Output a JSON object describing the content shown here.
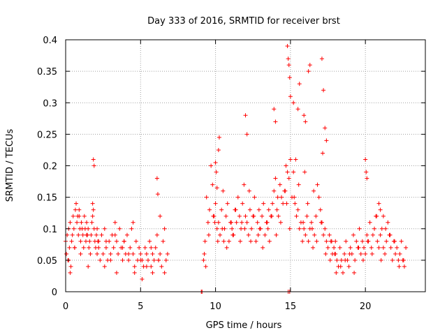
{
  "chart_data": {
    "type": "scatter",
    "title": "Day 333 of 2016, SRMTID for receiver brst",
    "xlabel": "GPS time / hours",
    "ylabel": "SRMTID / TECUs",
    "xlim": [
      0,
      24
    ],
    "ylim": [
      0,
      0.4
    ],
    "xticks": [
      0,
      5,
      10,
      15,
      20
    ],
    "xtick_labels": [
      "0",
      "5",
      "10",
      "15",
      "20"
    ],
    "yticks": [
      0,
      0.05,
      0.1,
      0.15,
      0.2,
      0.25,
      0.3,
      0.35,
      0.4
    ],
    "ytick_labels": [
      "0",
      "0.05",
      "0.1",
      "0.15",
      "0.2",
      "0.25",
      "0.3",
      "0.35",
      "0.4"
    ],
    "grid": true,
    "marker": "plus",
    "colors": {
      "marker": "#ff0000",
      "grid": "#a0a0a0",
      "axis": "#000000"
    },
    "series": [
      {
        "name": "SRMTID",
        "x": [
          0.0,
          0.05,
          0.1,
          0.15,
          0.2,
          0.25,
          0.3,
          0.35,
          0.4,
          0.45,
          0.5,
          0.55,
          0.6,
          0.65,
          0.7,
          0.75,
          0.8,
          0.85,
          0.9,
          0.95,
          1.0,
          1.05,
          1.1,
          1.15,
          1.2,
          1.25,
          1.3,
          1.35,
          1.4,
          1.45,
          1.5,
          1.55,
          1.6,
          1.65,
          1.7,
          1.75,
          1.8,
          1.85,
          1.9,
          1.95,
          2.0,
          2.05,
          2.1,
          2.15,
          2.2,
          2.3,
          2.4,
          2.5,
          2.6,
          2.7,
          2.8,
          2.9,
          3.0,
          3.1,
          3.2,
          3.3,
          3.4,
          3.5,
          3.6,
          3.7,
          3.8,
          3.9,
          4.0,
          4.1,
          4.2,
          4.3,
          4.4,
          4.5,
          4.6,
          4.7,
          4.8,
          4.9,
          5.0,
          5.1,
          5.2,
          5.3,
          5.4,
          5.5,
          5.6,
          5.7,
          5.8,
          5.9,
          6.0,
          6.1,
          6.2,
          6.3,
          6.4,
          6.5,
          6.6,
          6.7,
          6.8,
          0.2,
          0.6,
          1.0,
          1.4,
          1.8,
          2.2,
          2.6,
          3.0,
          3.4,
          3.8,
          4.2,
          4.6,
          5.0,
          5.4,
          5.8,
          6.2,
          6.6,
          0.3,
          0.9,
          1.5,
          2.1,
          2.7,
          3.3,
          3.9,
          4.5,
          5.1,
          5.7,
          6.3,
          1.85,
          1.9,
          6.1,
          6.15,
          9.05,
          9.1,
          9.2,
          9.3,
          9.4,
          9.5,
          9.6,
          9.7,
          9.8,
          9.9,
          10.0,
          10.1,
          10.2,
          10.3,
          10.4,
          10.5,
          10.6,
          10.7,
          10.8,
          10.9,
          11.0,
          11.1,
          11.2,
          11.3,
          11.4,
          11.5,
          11.6,
          11.7,
          11.8,
          11.9,
          12.0,
          12.1,
          12.2,
          12.3,
          12.4,
          12.5,
          12.6,
          12.7,
          12.8,
          12.9,
          13.0,
          13.1,
          13.2,
          13.3,
          13.4,
          13.5,
          13.6,
          13.7,
          13.8,
          13.9,
          14.0,
          14.1,
          14.2,
          14.3,
          14.4,
          14.5,
          14.6,
          14.7,
          14.8,
          14.9,
          15.0,
          15.1,
          15.2,
          15.3,
          15.4,
          15.5,
          15.6,
          15.7,
          15.8,
          15.9,
          16.0,
          16.1,
          16.2,
          16.3,
          16.4,
          16.5,
          16.6,
          16.7,
          16.8,
          16.9,
          17.0,
          17.1,
          17.2,
          17.3,
          17.4,
          17.5,
          17.6,
          17.7,
          17.8,
          17.9,
          18.0,
          9.25,
          9.55,
          9.85,
          10.15,
          10.45,
          10.75,
          11.05,
          11.35,
          11.65,
          11.95,
          12.25,
          12.55,
          12.85,
          13.15,
          13.45,
          13.75,
          14.05,
          14.35,
          14.65,
          14.95,
          15.25,
          15.55,
          15.85,
          16.15,
          16.45,
          16.75,
          17.05,
          17.35,
          17.65,
          17.95,
          9.35,
          9.95,
          10.55,
          11.15,
          11.75,
          12.35,
          12.95,
          13.55,
          14.15,
          14.75,
          15.35,
          15.95,
          16.55,
          17.15,
          17.75,
          10.0,
          10.05,
          10.1,
          10.2,
          10.25,
          12.0,
          12.1,
          13.9,
          14.0,
          14.8,
          14.85,
          14.9,
          14.95,
          15.0,
          15.2,
          15.5,
          15.6,
          15.9,
          16.0,
          16.2,
          16.3,
          17.1,
          17.2,
          17.3,
          17.4,
          18.0,
          18.1,
          18.2,
          18.3,
          18.4,
          18.5,
          18.6,
          18.7,
          18.8,
          18.9,
          19.0,
          19.1,
          19.2,
          19.3,
          19.4,
          19.5,
          19.6,
          19.7,
          19.8,
          19.9,
          20.0,
          20.1,
          20.2,
          20.3,
          20.4,
          20.5,
          20.6,
          20.7,
          20.8,
          20.9,
          21.0,
          21.1,
          21.2,
          21.3,
          21.4,
          21.5,
          21.6,
          21.7,
          21.8,
          21.9,
          22.0,
          22.1,
          22.2,
          22.3,
          22.4,
          22.5,
          22.6,
          22.7,
          18.05,
          18.35,
          18.65,
          18.95,
          19.25,
          19.55,
          19.85,
          20.15,
          20.45,
          20.75,
          21.05,
          21.35,
          21.65,
          21.95,
          22.25,
          22.55,
          20.0,
          20.05,
          20.1,
          20.9,
          21.0,
          21.2,
          14.85,
          14.95
        ],
        "y": [
          0.08,
          0.06,
          0.09,
          0.05,
          0.1,
          0.07,
          0.11,
          0.04,
          0.08,
          0.09,
          0.12,
          0.1,
          0.07,
          0.13,
          0.14,
          0.11,
          0.12,
          0.09,
          0.13,
          0.1,
          0.08,
          0.11,
          0.1,
          0.09,
          0.07,
          0.12,
          0.1,
          0.08,
          0.11,
          0.09,
          0.1,
          0.07,
          0.08,
          0.06,
          0.09,
          0.11,
          0.14,
          0.13,
          0.1,
          0.08,
          0.07,
          0.09,
          0.06,
          0.08,
          0.07,
          0.05,
          0.09,
          0.06,
          0.1,
          0.07,
          0.05,
          0.08,
          0.06,
          0.09,
          0.07,
          0.11,
          0.08,
          0.06,
          0.1,
          0.07,
          0.05,
          0.08,
          0.06,
          0.09,
          0.05,
          0.07,
          0.1,
          0.06,
          0.04,
          0.08,
          0.05,
          0.07,
          0.06,
          0.05,
          0.04,
          0.07,
          0.06,
          0.05,
          0.08,
          0.04,
          0.06,
          0.05,
          0.07,
          0.09,
          0.05,
          0.06,
          0.04,
          0.08,
          0.1,
          0.05,
          0.06,
          0.05,
          0.07,
          0.06,
          0.09,
          0.12,
          0.08,
          0.04,
          0.05,
          0.03,
          0.07,
          0.06,
          0.03,
          0.05,
          0.04,
          0.03,
          0.05,
          0.03,
          0.03,
          0.12,
          0.04,
          0.1,
          0.08,
          0.09,
          0.08,
          0.11,
          0.02,
          0.07,
          0.12,
          0.21,
          0.2,
          0.18,
          0.155,
          0.0,
          0.0,
          0.05,
          0.08,
          0.15,
          0.11,
          0.13,
          0.2,
          0.17,
          0.12,
          0.14,
          0.1,
          0.11,
          0.09,
          0.13,
          0.16,
          0.1,
          0.12,
          0.14,
          0.08,
          0.11,
          0.1,
          0.09,
          0.13,
          0.11,
          0.15,
          0.12,
          0.1,
          0.14,
          0.17,
          0.12,
          0.11,
          0.09,
          0.13,
          0.1,
          0.12,
          0.15,
          0.08,
          0.11,
          0.13,
          0.1,
          0.12,
          0.14,
          0.09,
          0.11,
          0.1,
          0.08,
          0.12,
          0.14,
          0.16,
          0.18,
          0.13,
          0.12,
          0.17,
          0.15,
          0.14,
          0.16,
          0.2,
          0.19,
          0.18,
          0.21,
          0.15,
          0.19,
          0.14,
          0.12,
          0.13,
          0.1,
          0.11,
          0.08,
          0.1,
          0.09,
          0.12,
          0.08,
          0.1,
          0.11,
          0.07,
          0.09,
          0.12,
          0.17,
          0.15,
          0.13,
          0.11,
          0.09,
          0.1,
          0.08,
          0.07,
          0.09,
          0.08,
          0.06,
          0.07,
          0.08,
          0.06,
          0.09,
          0.12,
          0.08,
          0.1,
          0.07,
          0.11,
          0.13,
          0.08,
          0.1,
          0.16,
          0.12,
          0.09,
          0.07,
          0.11,
          0.12,
          0.09,
          0.11,
          0.16,
          0.1,
          0.15,
          0.17,
          0.11,
          0.14,
          0.1,
          0.08,
          0.11,
          0.06,
          0.05,
          0.06,
          0.04,
          0.11,
          0.08,
          0.09,
          0.11,
          0.08,
          0.1,
          0.13,
          0.15,
          0.14,
          0.21,
          0.19,
          0.16,
          0.22,
          0.08,
          0.205,
          0.19,
          0.165,
          0.225,
          0.245,
          0.28,
          0.25,
          0.29,
          0.27,
          0.39,
          0.37,
          0.36,
          0.34,
          0.31,
          0.3,
          0.29,
          0.33,
          0.28,
          0.27,
          0.35,
          0.36,
          0.37,
          0.32,
          0.26,
          0.24,
          0.06,
          0.05,
          0.04,
          0.07,
          0.05,
          0.03,
          0.06,
          0.08,
          0.05,
          0.04,
          0.07,
          0.06,
          0.09,
          0.05,
          0.08,
          0.07,
          0.1,
          0.06,
          0.08,
          0.07,
          0.06,
          0.09,
          0.08,
          0.11,
          0.07,
          0.09,
          0.1,
          0.12,
          0.08,
          0.07,
          0.09,
          0.1,
          0.07,
          0.06,
          0.08,
          0.11,
          0.09,
          0.07,
          0.05,
          0.08,
          0.06,
          0.07,
          0.05,
          0.06,
          0.08,
          0.05,
          0.04,
          0.07,
          0.03,
          0.04,
          0.05,
          0.06,
          0.03,
          0.07,
          0.05,
          0.08,
          0.06,
          0.12,
          0.05,
          0.1,
          0.09,
          0.08,
          0.04,
          0.05,
          0.21,
          0.19,
          0.18,
          0.14,
          0.13,
          0.12,
          0.0,
          0.0
        ]
      }
    ]
  }
}
